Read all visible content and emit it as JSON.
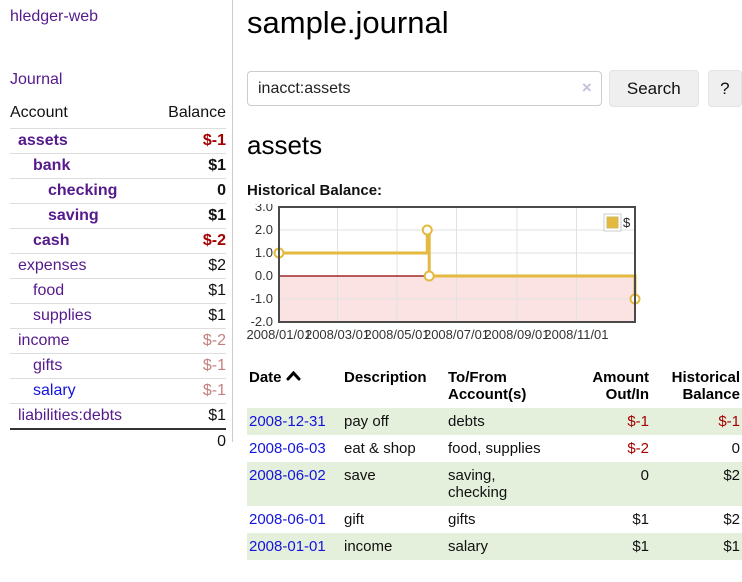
{
  "app": {
    "brand": "hledger-web",
    "nav_journal": "Journal"
  },
  "sidebar": {
    "accounts_header": {
      "account": "Account",
      "balance": "Balance"
    },
    "accounts": [
      {
        "name": "assets",
        "balance": "$-1",
        "indent": 0,
        "bold": true,
        "amount_style": "neg-strong",
        "link_style": "purple"
      },
      {
        "name": "bank",
        "balance": "$1",
        "indent": 1,
        "bold": true,
        "amount_style": "normal",
        "link_style": "purple"
      },
      {
        "name": "checking",
        "balance": "0",
        "indent": 2,
        "bold": true,
        "amount_style": "normal",
        "link_style": "purple"
      },
      {
        "name": "saving",
        "balance": "$1",
        "indent": 2,
        "bold": true,
        "amount_style": "normal",
        "link_style": "purple"
      },
      {
        "name": "cash",
        "balance": "$-2",
        "indent": 1,
        "bold": true,
        "amount_style": "neg-strong",
        "link_style": "purple"
      },
      {
        "name": "expenses",
        "balance": "$2",
        "indent": 0,
        "bold": false,
        "amount_style": "normal",
        "link_style": "purple"
      },
      {
        "name": "food",
        "balance": "$1",
        "indent": 1,
        "bold": false,
        "amount_style": "normal",
        "link_style": "purple"
      },
      {
        "name": "supplies",
        "balance": "$1",
        "indent": 1,
        "bold": false,
        "amount_style": "normal",
        "link_style": "purple"
      },
      {
        "name": "income",
        "balance": "$-2",
        "indent": 0,
        "bold": false,
        "amount_style": "neg-muted",
        "link_style": "purple"
      },
      {
        "name": "gifts",
        "balance": "$-1",
        "indent": 1,
        "bold": false,
        "amount_style": "neg-muted",
        "link_style": "purple"
      },
      {
        "name": "salary",
        "balance": "$-1",
        "indent": 1,
        "bold": false,
        "amount_style": "neg-muted",
        "link_style": "blue"
      },
      {
        "name": "liabilities:debts",
        "balance": "$1",
        "indent": 0,
        "bold": false,
        "amount_style": "normal",
        "link_style": "purple"
      }
    ],
    "total": "0"
  },
  "header": {
    "title": "sample.journal"
  },
  "search": {
    "value": "inacct:assets",
    "clear_icon": "×",
    "button_label": "Search",
    "help_label": "?"
  },
  "account_page": {
    "heading": "assets",
    "chart_label": "Historical Balance:"
  },
  "chart_data": {
    "type": "line",
    "title": "Historical Balance",
    "step": true,
    "series": [
      {
        "name": "$",
        "color": "#e3ba3f",
        "points": [
          {
            "date": "2008-01-01",
            "day": 0,
            "value": 1
          },
          {
            "date": "2008-06-01",
            "day": 152,
            "value": 2
          },
          {
            "date": "2008-06-03",
            "day": 154,
            "value": 0
          },
          {
            "date": "2008-12-31",
            "day": 365,
            "value": -1
          }
        ]
      }
    ],
    "x_ticks": [
      {
        "label": "2008/01/01",
        "day": 0
      },
      {
        "label": "2008/03/01",
        "day": 60
      },
      {
        "label": "2008/05/01",
        "day": 121
      },
      {
        "label": "2008/07/01",
        "day": 182
      },
      {
        "label": "2008/09/01",
        "day": 244
      },
      {
        "label": "2008/11/01",
        "day": 305
      }
    ],
    "y_ticks": [
      3,
      2,
      1,
      0,
      -1,
      -2
    ],
    "x_range_days": [
      0,
      365
    ],
    "ylim": [
      -2,
      3
    ],
    "grid": true,
    "legend": {
      "position": "top-right",
      "label": "$"
    },
    "negative_region_color": "#fbe3e3",
    "zero_line_color": "#8b0000",
    "grid_color": "#e2e2e2",
    "border_color": "#4a4a4a"
  },
  "register": {
    "columns": [
      {
        "id": "date",
        "lines": [
          "Date"
        ],
        "sorted": true
      },
      {
        "id": "description",
        "lines": [
          "Description"
        ],
        "sorted": false
      },
      {
        "id": "accounts",
        "lines": [
          "To/From",
          "Account(s)"
        ],
        "sorted": false
      },
      {
        "id": "amount",
        "lines": [
          "Amount",
          "Out/In"
        ],
        "sorted": false
      },
      {
        "id": "balance",
        "lines": [
          "Historical",
          "Balance"
        ],
        "sorted": false
      }
    ],
    "rows": [
      {
        "date": "2008-12-31",
        "description": "pay off",
        "accounts": "debts",
        "amount": "$-1",
        "amount_negative": true,
        "balance": "$-1",
        "balance_negative": true
      },
      {
        "date": "2008-06-03",
        "description": "eat & shop",
        "accounts": "food, supplies",
        "amount": "$-2",
        "amount_negative": true,
        "balance": "0",
        "balance_negative": false
      },
      {
        "date": "2008-06-02",
        "description": "save",
        "accounts": "saving, checking",
        "amount": "0",
        "amount_negative": false,
        "balance": "$2",
        "balance_negative": false
      },
      {
        "date": "2008-06-01",
        "description": "gift",
        "accounts": "gifts",
        "amount": "$1",
        "amount_negative": false,
        "balance": "$2",
        "balance_negative": false
      },
      {
        "date": "2008-01-01",
        "description": "income",
        "accounts": "salary",
        "amount": "$1",
        "amount_negative": false,
        "balance": "$1",
        "balance_negative": false
      }
    ]
  },
  "colors": {
    "link_purple": "#551a8b",
    "link_blue": "#1414dd",
    "negative_strong": "#a40000",
    "negative_muted": "#c5807f",
    "row_green": "#e4efdc",
    "chart_gold": "#e3ba3f",
    "chart_negative_fill": "#fbe3e3",
    "chart_zero_line": "#8b0000"
  }
}
